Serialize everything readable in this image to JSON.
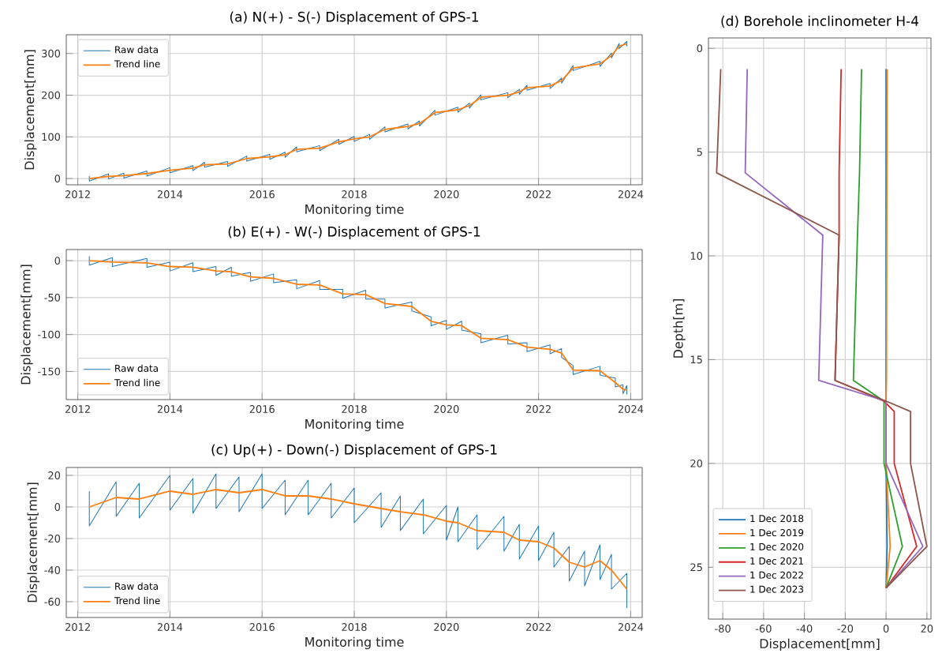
{
  "chart_data": [
    {
      "type": "line",
      "title": "(a) N(+) - S(-) Displacement of GPS-1",
      "xlabel": "Monitoring time",
      "ylabel": "Displacement[mm]",
      "x": [
        "2012-04",
        "2012-09",
        "2013-01",
        "2013-07",
        "2014-01",
        "2014-07",
        "2014-10",
        "2015-04",
        "2015-09",
        "2016-03",
        "2016-07",
        "2016-10",
        "2017-04",
        "2017-09",
        "2018-01",
        "2018-05",
        "2018-09",
        "2019-03",
        "2019-06",
        "2019-10",
        "2020-04",
        "2020-07",
        "2020-10",
        "2021-05",
        "2021-08",
        "2021-10",
        "2022-04",
        "2022-07",
        "2022-10",
        "2023-05",
        "2023-08",
        "2023-10",
        "2023-12"
      ],
      "series": [
        {
          "name": "Raw data",
          "color": "#1f77b4",
          "x": [
            "2012-04",
            "2012-04",
            "2012-09",
            "2012-09",
            "2013-01",
            "2013-01",
            "2013-07",
            "2013-07",
            "2014-01",
            "2014-01",
            "2014-07",
            "2014-07",
            "2014-10",
            "2014-10",
            "2015-04",
            "2015-04",
            "2015-09",
            "2015-09",
            "2016-03",
            "2016-03",
            "2016-07",
            "2016-07",
            "2016-10",
            "2016-10",
            "2017-04",
            "2017-04",
            "2017-09",
            "2017-09",
            "2018-01",
            "2018-01",
            "2018-05",
            "2018-05",
            "2018-09",
            "2018-09",
            "2019-03",
            "2019-03",
            "2019-06",
            "2019-06",
            "2019-10",
            "2019-10",
            "2020-04",
            "2020-04",
            "2020-07",
            "2020-07",
            "2020-10",
            "2020-10",
            "2021-05",
            "2021-05",
            "2021-08",
            "2021-08",
            "2021-10",
            "2021-10",
            "2022-04",
            "2022-04",
            "2022-07",
            "2022-07",
            "2022-10",
            "2022-10",
            "2023-05",
            "2023-05",
            "2023-08",
            "2023-08",
            "2023-10",
            "2023-10",
            "2023-12",
            "2023-12"
          ],
          "values": [
            6,
            -6,
            11,
            -1,
            13,
            1,
            18,
            6,
            26,
            14,
            31,
            19,
            39,
            27,
            41,
            29,
            54,
            42,
            58,
            46,
            63,
            51,
            76,
            64,
            79,
            67,
            94,
            82,
            101,
            89,
            106,
            94,
            124,
            112,
            131,
            119,
            138,
            126,
            164,
            152,
            171,
            159,
            181,
            169,
            201,
            189,
            206,
            194,
            214,
            202,
            224,
            212,
            228,
            216,
            241,
            229,
            271,
            259,
            281,
            269,
            301,
            289,
            324,
            312,
            329,
            317
          ]
        },
        {
          "name": "Trend line",
          "color": "#ff7f0e",
          "values": [
            0,
            5,
            7,
            12,
            20,
            25,
            33,
            35,
            48,
            52,
            57,
            70,
            73,
            88,
            95,
            100,
            118,
            125,
            132,
            158,
            165,
            175,
            195,
            200,
            208,
            218,
            222,
            235,
            265,
            275,
            295,
            318,
            323
          ]
        }
      ],
      "xlim": [
        "2011-10",
        "2024-04"
      ],
      "xticks": [
        "2012",
        "2014",
        "2016",
        "2018",
        "2020",
        "2022",
        "2024"
      ],
      "ylim": [
        -15,
        345
      ],
      "yticks": [
        0,
        100,
        200,
        300
      ],
      "grid": true,
      "legend": "top left"
    },
    {
      "type": "line",
      "title": "(b) E(+) - W(-) Displacement of GPS-1",
      "xlabel": "Monitoring time",
      "ylabel": "Displacement[mm]",
      "x": [
        "2012-04",
        "2012-10",
        "2013-07",
        "2014-01",
        "2014-07",
        "2015-01",
        "2015-05",
        "2015-10",
        "2016-04",
        "2016-10",
        "2017-04",
        "2017-10",
        "2018-04",
        "2018-09",
        "2019-04",
        "2019-09",
        "2020-01",
        "2020-05",
        "2020-10",
        "2021-05",
        "2021-10",
        "2022-04",
        "2022-07",
        "2022-10",
        "2023-05",
        "2023-09",
        "2023-11",
        "2023-12"
      ],
      "series": [
        {
          "name": "Raw data",
          "color": "#1f77b4",
          "x": [
            "2012-04",
            "2012-04",
            "2012-10",
            "2012-10",
            "2013-07",
            "2013-07",
            "2014-01",
            "2014-01",
            "2014-07",
            "2014-07",
            "2015-01",
            "2015-01",
            "2015-05",
            "2015-05",
            "2015-10",
            "2015-10",
            "2016-04",
            "2016-04",
            "2016-10",
            "2016-10",
            "2017-04",
            "2017-04",
            "2017-10",
            "2017-10",
            "2018-04",
            "2018-04",
            "2018-09",
            "2018-09",
            "2019-04",
            "2019-04",
            "2019-09",
            "2019-09",
            "2020-01",
            "2020-01",
            "2020-05",
            "2020-05",
            "2020-10",
            "2020-10",
            "2021-05",
            "2021-05",
            "2021-10",
            "2021-10",
            "2022-04",
            "2022-04",
            "2022-07",
            "2022-07",
            "2022-10",
            "2022-10",
            "2023-05",
            "2023-05",
            "2023-09",
            "2023-09",
            "2023-11",
            "2023-11",
            "2023-12",
            "2023-12"
          ],
          "values": [
            6,
            -6,
            4,
            -8,
            3,
            -9,
            -2,
            -14,
            -3,
            -15,
            -8,
            -20,
            -9,
            -21,
            -16,
            -28,
            -18,
            -30,
            -26,
            -38,
            -27,
            -39,
            -39,
            -51,
            -40,
            -52,
            -52,
            -64,
            -56,
            -68,
            -76,
            -88,
            -81,
            -93,
            -82,
            -94,
            -99,
            -111,
            -101,
            -113,
            -111,
            -123,
            -114,
            -126,
            -119,
            -131,
            -142,
            -154,
            -143,
            -155,
            -159,
            -171,
            -168,
            -180,
            -169,
            -181
          ]
        },
        {
          "name": "Trend line",
          "color": "#ff7f0e",
          "values": [
            0,
            -2,
            -3,
            -8,
            -9,
            -14,
            -15,
            -22,
            -24,
            -32,
            -33,
            -45,
            -46,
            -58,
            -62,
            -82,
            -87,
            -88,
            -105,
            -107,
            -117,
            -120,
            -125,
            -148,
            -149,
            -165,
            -174,
            -175
          ]
        }
      ],
      "xlim": [
        "2011-10",
        "2024-04"
      ],
      "xticks": [
        "2012",
        "2014",
        "2016",
        "2018",
        "2020",
        "2022",
        "2024"
      ],
      "ylim": [
        -188,
        15
      ],
      "yticks": [
        -150,
        -100,
        -50,
        0
      ],
      "grid": true,
      "legend": "bottom left"
    },
    {
      "type": "line",
      "title": "(c) Up(+) - Down(-) Displacement of GPS-1",
      "xlabel": "Monitoring time",
      "ylabel": "Displacement[mm]",
      "x": [
        "2012-04",
        "2012-11",
        "2013-05",
        "2014-01",
        "2014-07",
        "2015-01",
        "2015-07",
        "2016-01",
        "2016-07",
        "2017-01",
        "2017-07",
        "2018-01",
        "2018-08",
        "2019-01",
        "2019-07",
        "2020-01",
        "2020-04",
        "2020-09",
        "2021-04",
        "2021-08",
        "2022-01",
        "2022-05",
        "2022-09",
        "2023-01",
        "2023-05",
        "2023-08",
        "2023-12"
      ],
      "series": [
        {
          "name": "Raw data",
          "color": "#1f77b4",
          "x": [
            "2012-04",
            "2012-04",
            "2012-11",
            "2012-11",
            "2013-05",
            "2013-05",
            "2014-01",
            "2014-01",
            "2014-07",
            "2014-07",
            "2015-01",
            "2015-01",
            "2015-07",
            "2015-07",
            "2016-01",
            "2016-01",
            "2016-07",
            "2016-07",
            "2017-01",
            "2017-01",
            "2017-07",
            "2017-07",
            "2018-01",
            "2018-01",
            "2018-08",
            "2018-08",
            "2019-01",
            "2019-01",
            "2019-07",
            "2019-07",
            "2020-01",
            "2020-01",
            "2020-04",
            "2020-04",
            "2020-09",
            "2020-09",
            "2021-04",
            "2021-04",
            "2021-08",
            "2021-08",
            "2022-01",
            "2022-01",
            "2022-05",
            "2022-05",
            "2022-09",
            "2022-09",
            "2023-01",
            "2023-01",
            "2023-05",
            "2023-05",
            "2023-08",
            "2023-08",
            "2023-12",
            "2023-12"
          ],
          "values": [
            10,
            -12,
            16,
            -6,
            15,
            -7,
            20,
            -2,
            18,
            -4,
            21,
            -1,
            19,
            -3,
            21,
            -1,
            17,
            -5,
            17,
            -5,
            15,
            -7,
            12,
            -10,
            9,
            -13,
            7,
            -15,
            5,
            -17,
            1,
            -21,
            0,
            -22,
            -5,
            -27,
            -6,
            -28,
            -11,
            -33,
            -12,
            -34,
            -16,
            -38,
            -25,
            -47,
            -28,
            -50,
            -24,
            -46,
            -30,
            -52,
            -42,
            -64
          ]
        },
        {
          "name": "Trend line",
          "color": "#ff7f0e",
          "values": [
            0,
            6,
            5,
            10,
            8,
            11,
            9,
            11,
            7,
            7,
            5,
            2,
            -1,
            -3,
            -5,
            -9,
            -10,
            -15,
            -16,
            -21,
            -22,
            -26,
            -35,
            -38,
            -34,
            -40,
            -52
          ]
        }
      ],
      "xlim": [
        "2011-10",
        "2024-04"
      ],
      "xticks": [
        "2012",
        "2014",
        "2016",
        "2018",
        "2020",
        "2022",
        "2024"
      ],
      "ylim": [
        -70,
        25
      ],
      "yticks": [
        -60,
        -40,
        -20,
        0,
        20
      ],
      "grid": true,
      "legend": "bottom left"
    },
    {
      "type": "line",
      "title": "(d) Borehole inclinometer H-4",
      "xlabel": "Displacement[mm]",
      "ylabel": "Depth[m]",
      "series": [
        {
          "name": "1 Dec 2018",
          "color": "#1f77b4",
          "x": [
            0,
            0,
            0,
            0,
            0.5,
            0
          ],
          "values": [
            1,
            16,
            17,
            20,
            24,
            26
          ]
        },
        {
          "name": "1 Dec 2019",
          "color": "#ff7f0e",
          "x": [
            0.5,
            0.2,
            0,
            0,
            2,
            0
          ],
          "values": [
            1,
            16,
            17,
            20,
            24,
            26
          ]
        },
        {
          "name": "1 Dec 2020",
          "color": "#2ca02c",
          "x": [
            -12,
            -13,
            -14,
            -16,
            -1,
            -1,
            8,
            0
          ],
          "values": [
            1,
            6,
            9,
            16,
            17,
            20,
            24,
            26
          ]
        },
        {
          "name": "1 Dec 2021",
          "color": "#d62728",
          "x": [
            -22,
            -23,
            -23,
            -25,
            -1,
            4,
            4,
            15,
            0
          ],
          "values": [
            1,
            6,
            9,
            16,
            17,
            17.5,
            20,
            24,
            26
          ]
        },
        {
          "name": "1 Dec 2022",
          "color": "#9467bd",
          "x": [
            -68,
            -69,
            -31,
            -33,
            0,
            0,
            18,
            0
          ],
          "values": [
            1,
            6,
            9,
            16,
            17,
            20,
            24,
            26
          ]
        },
        {
          "name": "1 Dec 2023",
          "color": "#8c564b",
          "x": [
            -81,
            -83,
            -23,
            -25,
            0,
            12,
            12,
            20,
            0
          ],
          "values": [
            1,
            6,
            9,
            16,
            17,
            17.5,
            20,
            24,
            26
          ]
        }
      ],
      "xlim": [
        -87,
        22
      ],
      "xticks": [
        -80,
        -60,
        -40,
        -20,
        0,
        20
      ],
      "ylim": [
        27.5,
        -0.5
      ],
      "yticks": [
        0,
        5,
        10,
        15,
        20,
        25
      ],
      "grid": true,
      "legend": "bottom left"
    }
  ]
}
